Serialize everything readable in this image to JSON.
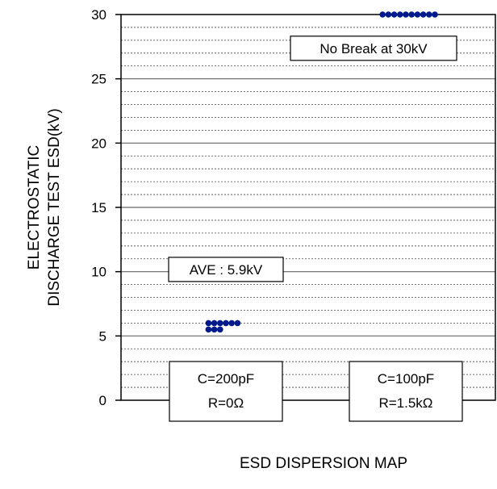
{
  "chart_data": {
    "type": "scatter",
    "title": "",
    "xlabel": "ESD DISPERSION MAP",
    "ylabel_lines": [
      "ELECTROSTATIC",
      "DISCHARGE TEST ESD(kV)"
    ],
    "ylim": [
      0,
      30
    ],
    "yticks": [
      0,
      5,
      10,
      15,
      20,
      25,
      30
    ],
    "minor_grid_step": 1,
    "grid": true,
    "marker_color": "#001a8c",
    "categories": [
      {
        "lines": [
          "C=200pF",
          "R=0Ω"
        ]
      },
      {
        "lines": [
          "C=100pF",
          "R=1.5kΩ"
        ]
      }
    ],
    "series": [
      {
        "category": 0,
        "x": [
          -0.45,
          -0.3,
          -0.15,
          0.0,
          0.15,
          0.3,
          -0.45,
          -0.3,
          -0.15
        ],
        "y": [
          6.0,
          6.0,
          6.0,
          6.0,
          6.0,
          6.0,
          5.5,
          5.5,
          5.5
        ]
      },
      {
        "category": 1,
        "x": [
          -0.6,
          -0.45,
          -0.3,
          -0.15,
          0.0,
          0.15,
          0.3,
          0.45,
          0.6,
          0.75
        ],
        "y": [
          30,
          30,
          30,
          30,
          30,
          30,
          30,
          30,
          30,
          30
        ]
      }
    ],
    "annotations": [
      {
        "text": "AVE : 5.9kV",
        "category": 0,
        "y": 10.3
      },
      {
        "text": "No Break at 30kV",
        "category": 1,
        "y": 27.5
      }
    ]
  }
}
